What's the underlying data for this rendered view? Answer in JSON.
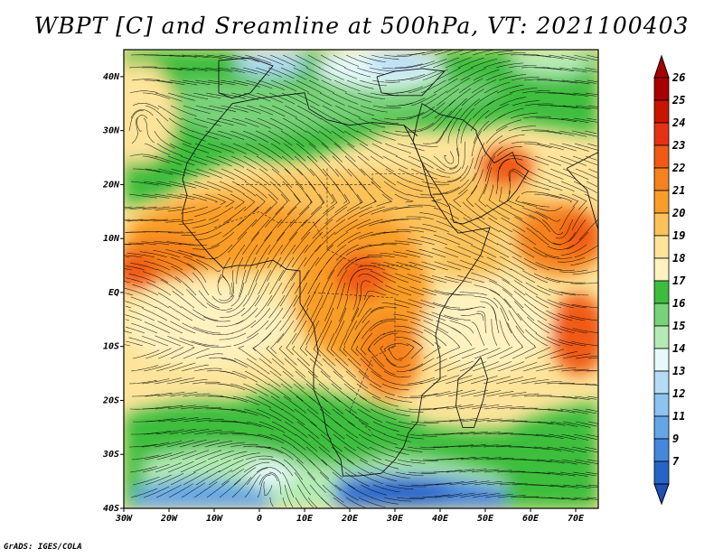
{
  "title": "WBPT [C] and Sreamline at 500hPa, VT: 2021100403",
  "credit": "GrADS: IGES/COLA",
  "map": {
    "lon_range": [
      -30,
      75
    ],
    "lat_range": [
      -40,
      45
    ],
    "lat_ticks": [
      {
        "value": 40,
        "label": "40N"
      },
      {
        "value": 30,
        "label": "30N"
      },
      {
        "value": 20,
        "label": "20N"
      },
      {
        "value": 10,
        "label": "10N"
      },
      {
        "value": 0,
        "label": "EQ"
      },
      {
        "value": -10,
        "label": "10S"
      },
      {
        "value": -20,
        "label": "20S"
      },
      {
        "value": -30,
        "label": "30S"
      },
      {
        "value": -40,
        "label": "40S"
      }
    ],
    "lon_ticks": [
      {
        "value": -30,
        "label": "30W"
      },
      {
        "value": -20,
        "label": "20W"
      },
      {
        "value": -10,
        "label": "10W"
      },
      {
        "value": 0,
        "label": "0"
      },
      {
        "value": 10,
        "label": "10E"
      },
      {
        "value": 20,
        "label": "20E"
      },
      {
        "value": 30,
        "label": "30E"
      },
      {
        "value": 40,
        "label": "40E"
      },
      {
        "value": 50,
        "label": "50E"
      },
      {
        "value": 60,
        "label": "60E"
      },
      {
        "value": 70,
        "label": "70E"
      }
    ]
  },
  "colorbar": {
    "levels": [
      {
        "label": "26",
        "color": "#a80000"
      },
      {
        "label": "25",
        "color": "#c81400"
      },
      {
        "label": "24",
        "color": "#e63214"
      },
      {
        "label": "23",
        "color": "#f05a14"
      },
      {
        "label": "22",
        "color": "#f5821e"
      },
      {
        "label": "21",
        "color": "#fa9d28"
      },
      {
        "label": "20",
        "color": "#fbc25a"
      },
      {
        "label": "19",
        "color": "#fde49a"
      },
      {
        "label": "18",
        "color": "#fff2c0"
      },
      {
        "label": "17",
        "color": "#3cbe3c"
      },
      {
        "label": "16",
        "color": "#78d278"
      },
      {
        "label": "15",
        "color": "#b4ebb4"
      },
      {
        "label": "14",
        "color": "#e6fafa"
      },
      {
        "label": "13",
        "color": "#b4dcf5"
      },
      {
        "label": "12",
        "color": "#8cc3f0"
      },
      {
        "label": "11",
        "color": "#64a5e6"
      },
      {
        "label": "9",
        "color": "#4687dc"
      },
      {
        "label": "7",
        "color": "#2864c8"
      }
    ],
    "under_color": "#1e50b4"
  }
}
